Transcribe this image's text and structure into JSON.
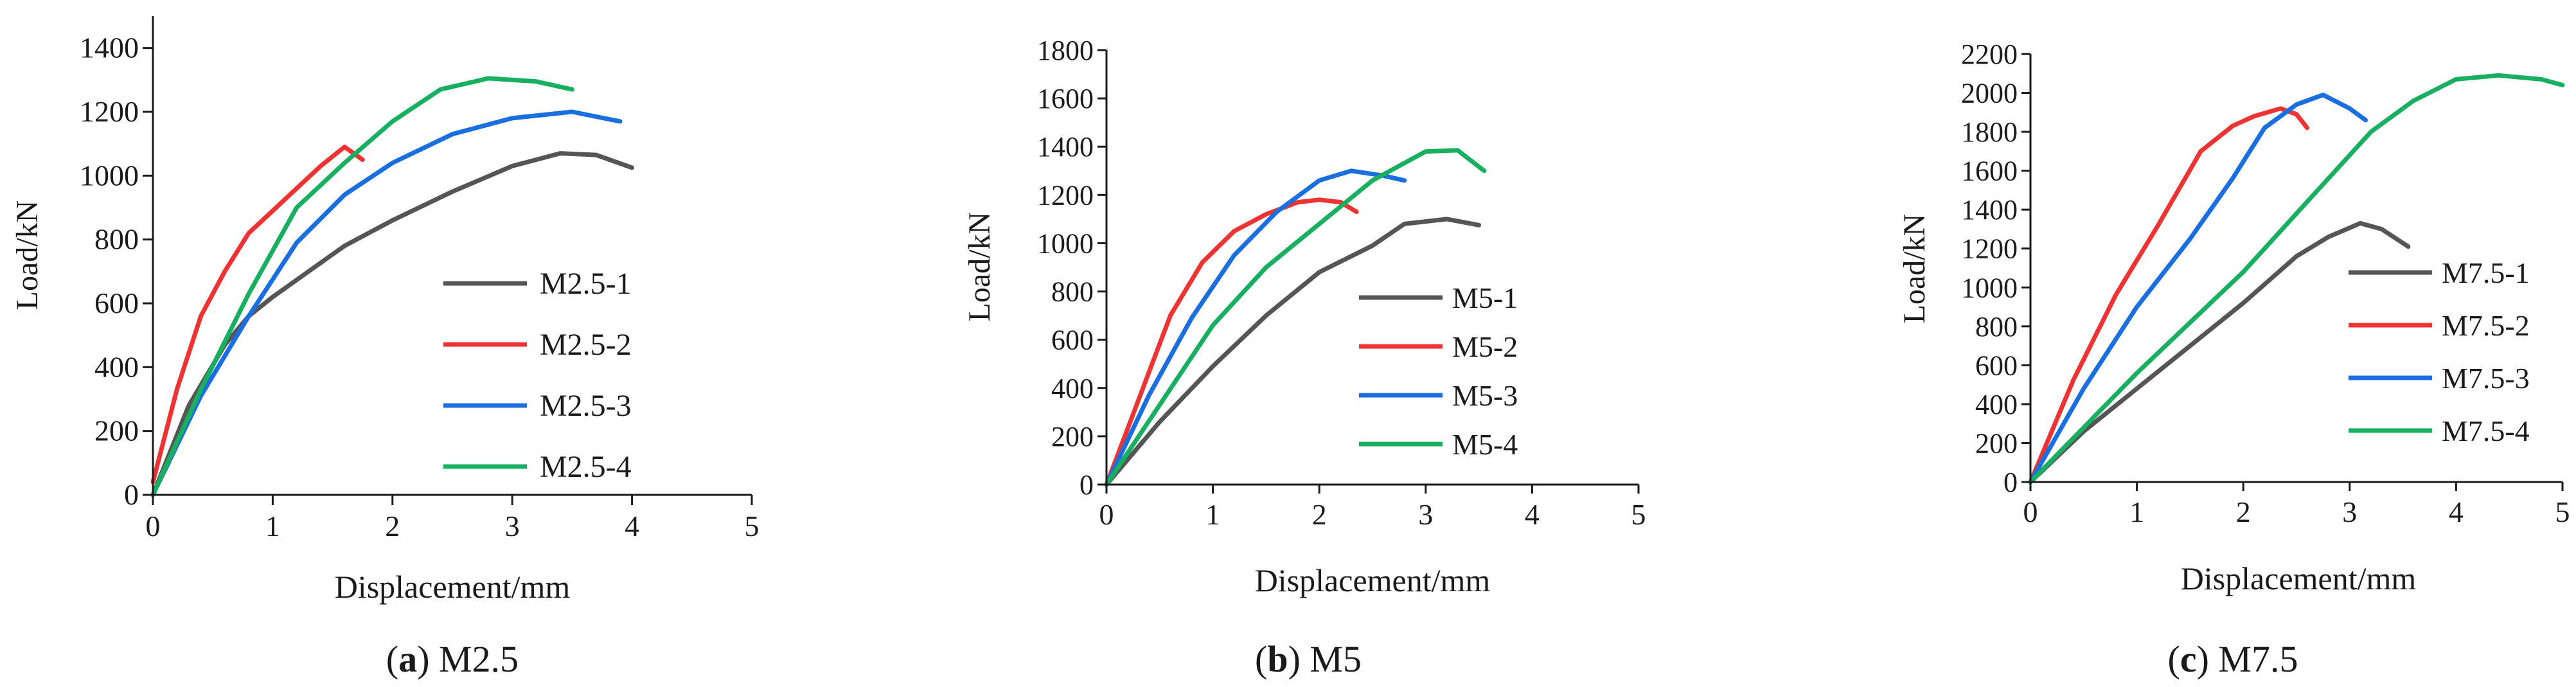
{
  "colors": {
    "series1": "#555555",
    "series2": "#ee3333",
    "series3": "#1a6fe0",
    "series4": "#18b060",
    "axis": "#1a1a1a"
  },
  "chart_data": [
    {
      "type": "line",
      "caption_letter": "a",
      "caption_text": "M2.5",
      "xlabel": "Displacement/mm",
      "ylabel": "Load/kN",
      "xlim": [
        0,
        5
      ],
      "ylim": [
        0,
        1500
      ],
      "xticks": [
        0,
        1,
        2,
        3,
        4,
        5
      ],
      "yticks": [
        0,
        200,
        400,
        600,
        800,
        1000,
        1200,
        1400
      ],
      "legend_position": "center-right",
      "series": [
        {
          "name": "M2.5-1",
          "color": "#555555",
          "x": [
            0,
            0.3,
            0.6,
            0.8,
            1.0,
            1.3,
            1.6,
            2.0,
            2.5,
            3.0,
            3.4,
            3.7,
            4.0
          ],
          "y": [
            0,
            280,
            470,
            560,
            620,
            700,
            780,
            860,
            950,
            1030,
            1070,
            1065,
            1025
          ]
        },
        {
          "name": "M2.5-2",
          "color": "#ee3333",
          "x": [
            0,
            0.2,
            0.4,
            0.6,
            0.8,
            1.0,
            1.2,
            1.4,
            1.6,
            1.75
          ],
          "y": [
            40,
            330,
            560,
            700,
            820,
            890,
            960,
            1030,
            1090,
            1050
          ]
        },
        {
          "name": "M2.5-3",
          "color": "#1a6fe0",
          "x": [
            0,
            0.4,
            0.8,
            1.2,
            1.6,
            2.0,
            2.5,
            3.0,
            3.5,
            3.9
          ],
          "y": [
            0,
            310,
            560,
            790,
            940,
            1040,
            1130,
            1180,
            1200,
            1170
          ]
        },
        {
          "name": "M2.5-4",
          "color": "#18b060",
          "x": [
            0,
            0.4,
            0.8,
            1.2,
            1.6,
            2.0,
            2.4,
            2.8,
            3.2,
            3.5
          ],
          "y": [
            0,
            330,
            630,
            900,
            1040,
            1170,
            1270,
            1305,
            1295,
            1270
          ]
        }
      ]
    },
    {
      "type": "line",
      "caption_letter": "b",
      "caption_text": "M5",
      "xlabel": "Displacement/mm",
      "ylabel": "Load/kN",
      "xlim": [
        0,
        5
      ],
      "ylim": [
        0,
        1800
      ],
      "xticks": [
        0,
        1,
        2,
        3,
        4,
        5
      ],
      "yticks": [
        0,
        200,
        400,
        600,
        800,
        1000,
        1200,
        1400,
        1600,
        1800
      ],
      "legend_position": "center-right",
      "series": [
        {
          "name": "M5-1",
          "color": "#555555",
          "x": [
            0,
            0.5,
            1.0,
            1.5,
            2.0,
            2.5,
            2.8,
            3.2,
            3.5
          ],
          "y": [
            0,
            260,
            490,
            700,
            880,
            990,
            1080,
            1100,
            1075
          ]
        },
        {
          "name": "M5-2",
          "color": "#ee3333",
          "x": [
            0,
            0.3,
            0.6,
            0.9,
            1.2,
            1.5,
            1.8,
            2.0,
            2.2,
            2.35
          ],
          "y": [
            0,
            350,
            700,
            920,
            1050,
            1120,
            1170,
            1180,
            1170,
            1130
          ]
        },
        {
          "name": "M5-3",
          "color": "#1a6fe0",
          "x": [
            0,
            0.4,
            0.8,
            1.2,
            1.6,
            2.0,
            2.3,
            2.6,
            2.8
          ],
          "y": [
            0,
            370,
            690,
            950,
            1130,
            1260,
            1300,
            1280,
            1260
          ]
        },
        {
          "name": "M5-4",
          "color": "#18b060",
          "x": [
            0,
            0.5,
            1.0,
            1.5,
            2.0,
            2.5,
            3.0,
            3.3,
            3.55
          ],
          "y": [
            0,
            330,
            660,
            900,
            1080,
            1260,
            1380,
            1385,
            1300
          ]
        }
      ]
    },
    {
      "type": "line",
      "caption_letter": "c",
      "caption_text": "M7.5",
      "xlabel": "Displacement/mm",
      "ylabel": "Load/kN",
      "xlim": [
        0,
        5
      ],
      "ylim": [
        0,
        2200
      ],
      "xticks": [
        0,
        1,
        2,
        3,
        4,
        5
      ],
      "yticks": [
        0,
        200,
        400,
        600,
        800,
        1000,
        1200,
        1400,
        1600,
        1800,
        2000,
        2200
      ],
      "legend_position": "center-right",
      "series": [
        {
          "name": "M7.5-1",
          "color": "#555555",
          "x": [
            0,
            0.5,
            1.0,
            1.5,
            2.0,
            2.5,
            2.8,
            3.1,
            3.3,
            3.55
          ],
          "y": [
            0,
            260,
            480,
            700,
            920,
            1160,
            1260,
            1330,
            1300,
            1210
          ]
        },
        {
          "name": "M7.5-2",
          "color": "#ee3333",
          "x": [
            0,
            0.4,
            0.8,
            1.2,
            1.6,
            1.9,
            2.1,
            2.35,
            2.5,
            2.6
          ],
          "y": [
            0,
            520,
            960,
            1320,
            1700,
            1830,
            1880,
            1920,
            1890,
            1820
          ]
        },
        {
          "name": "M7.5-3",
          "color": "#1a6fe0",
          "x": [
            0,
            0.5,
            1.0,
            1.5,
            1.9,
            2.2,
            2.5,
            2.75,
            3.0,
            3.15
          ],
          "y": [
            0,
            480,
            900,
            1250,
            1560,
            1820,
            1940,
            1990,
            1920,
            1860
          ]
        },
        {
          "name": "M7.5-4",
          "color": "#18b060",
          "x": [
            0,
            1.0,
            2.0,
            2.8,
            3.2,
            3.6,
            4.0,
            4.4,
            4.8,
            5.0
          ],
          "y": [
            0,
            560,
            1080,
            1560,
            1800,
            1960,
            2070,
            2090,
            2070,
            2040
          ]
        }
      ]
    }
  ]
}
